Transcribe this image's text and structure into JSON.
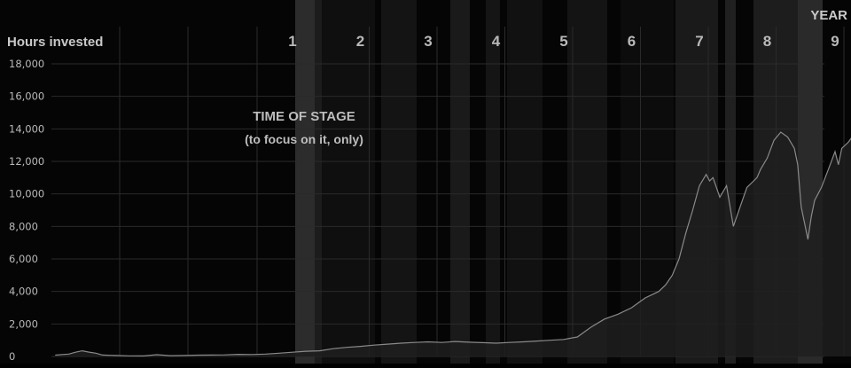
{
  "chart_data": {
    "type": "area",
    "title": "",
    "ylabel": "Hours invested",
    "xlabel_top": "YEAR",
    "ylim": [
      0,
      18000
    ],
    "y_ticks": [
      "0",
      "2,000",
      "4,000",
      "6,000",
      "8,000",
      "10,000",
      "12,000",
      "14,000",
      "16,000",
      "18,000"
    ],
    "year_labels": [
      "1",
      "2",
      "3",
      "4",
      "5",
      "6",
      "7",
      "8",
      "9"
    ],
    "annotation": {
      "line1": "TIME OF STAGE",
      "line2": "(to focus on it, only)"
    },
    "grid": true,
    "colors": {
      "background": "#050505",
      "line": "#8a8a8a",
      "fill": "#1e1e1e",
      "text": "#b9b9b9",
      "grid": "#2a2a2a"
    },
    "series": [
      {
        "x": [
          -2.5,
          -2.4,
          -2.3,
          -2.2,
          -2.1,
          -2.0,
          -1.9,
          -1.8,
          -1.6,
          -1.4,
          -1.2,
          -1.0,
          -0.8,
          -0.6,
          -0.4,
          -0.2,
          0.0,
          0.2,
          0.4,
          0.6,
          0.8,
          1.0,
          1.2,
          1.4,
          1.6,
          1.8,
          2.0,
          2.2,
          2.4,
          2.6,
          2.8,
          3.0,
          3.2,
          3.4,
          3.6,
          3.8,
          4.0,
          4.2,
          4.4,
          4.6,
          4.8,
          5.0,
          5.2,
          5.4,
          5.6,
          5.8,
          6.0,
          6.1,
          6.2,
          6.3,
          6.4,
          6.5,
          6.6,
          6.7,
          6.8,
          6.9,
          7.0,
          7.1,
          7.15,
          7.2,
          7.3,
          7.4,
          7.5,
          7.6,
          7.7,
          7.8,
          7.85,
          7.9,
          8.0,
          8.1,
          8.2,
          8.3,
          8.4,
          8.45,
          8.5,
          8.6,
          8.65,
          8.7,
          8.8,
          8.9,
          9.0,
          9.05,
          9.1,
          9.2,
          9.3,
          9.4
        ],
        "y": [
          80,
          120,
          150,
          260,
          350,
          270,
          200,
          90,
          60,
          40,
          30,
          110,
          50,
          60,
          80,
          90,
          100,
          130,
          120,
          150,
          200,
          260,
          320,
          350,
          480,
          560,
          620,
          700,
          760,
          820,
          860,
          900,
          860,
          920,
          880,
          850,
          820,
          860,
          900,
          950,
          1000,
          1050,
          1200,
          1800,
          2300,
          2600,
          3000,
          3300,
          3600,
          3800,
          4000,
          4400,
          5000,
          6000,
          7600,
          9000,
          10500,
          11200,
          10800,
          11000,
          9800,
          10500,
          8000,
          9200,
          10400,
          10800,
          11000,
          11500,
          12200,
          13300,
          13800,
          13500,
          12800,
          11800,
          9200,
          7200,
          8600,
          9600,
          10400,
          11500,
          12600,
          11800,
          12800,
          13200,
          13800,
          14800
        ]
      }
    ]
  }
}
